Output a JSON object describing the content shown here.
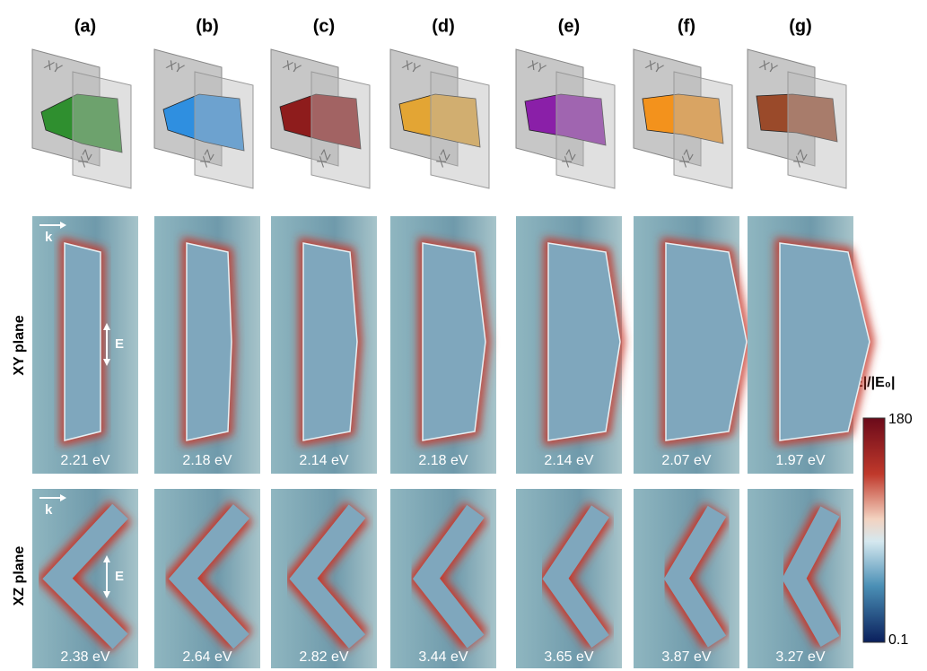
{
  "columns": [
    {
      "label": "(a)",
      "xy_energy": "2.21 eV",
      "xz_energy": "2.38 eV"
    },
    {
      "label": "(b)",
      "xy_energy": "2.18 eV",
      "xz_energy": "2.64 eV"
    },
    {
      "label": "(c)",
      "xy_energy": "2.14 eV",
      "xz_energy": "2.82 eV"
    },
    {
      "label": "(d)",
      "xy_energy": "2.18 eV",
      "xz_energy": "3.44 eV"
    },
    {
      "label": "(e)",
      "xy_energy": "2.14 eV",
      "xz_energy": "3.65 eV"
    },
    {
      "label": "(f)",
      "xy_energy": "2.07 eV",
      "xz_energy": "3.87 eV"
    },
    {
      "label": "(g)",
      "xy_energy": "1.97 eV",
      "xz_energy": "3.27 eV"
    }
  ],
  "plane_labels": {
    "xy": "XY",
    "xz": "XZ"
  },
  "rows": {
    "xy": "XY plane",
    "xz": "XZ plane"
  },
  "arrows": {
    "k": "k",
    "e": "E"
  },
  "colorbar": {
    "title": "|E|/|E₀|",
    "max": "180",
    "min": "0.1"
  }
}
